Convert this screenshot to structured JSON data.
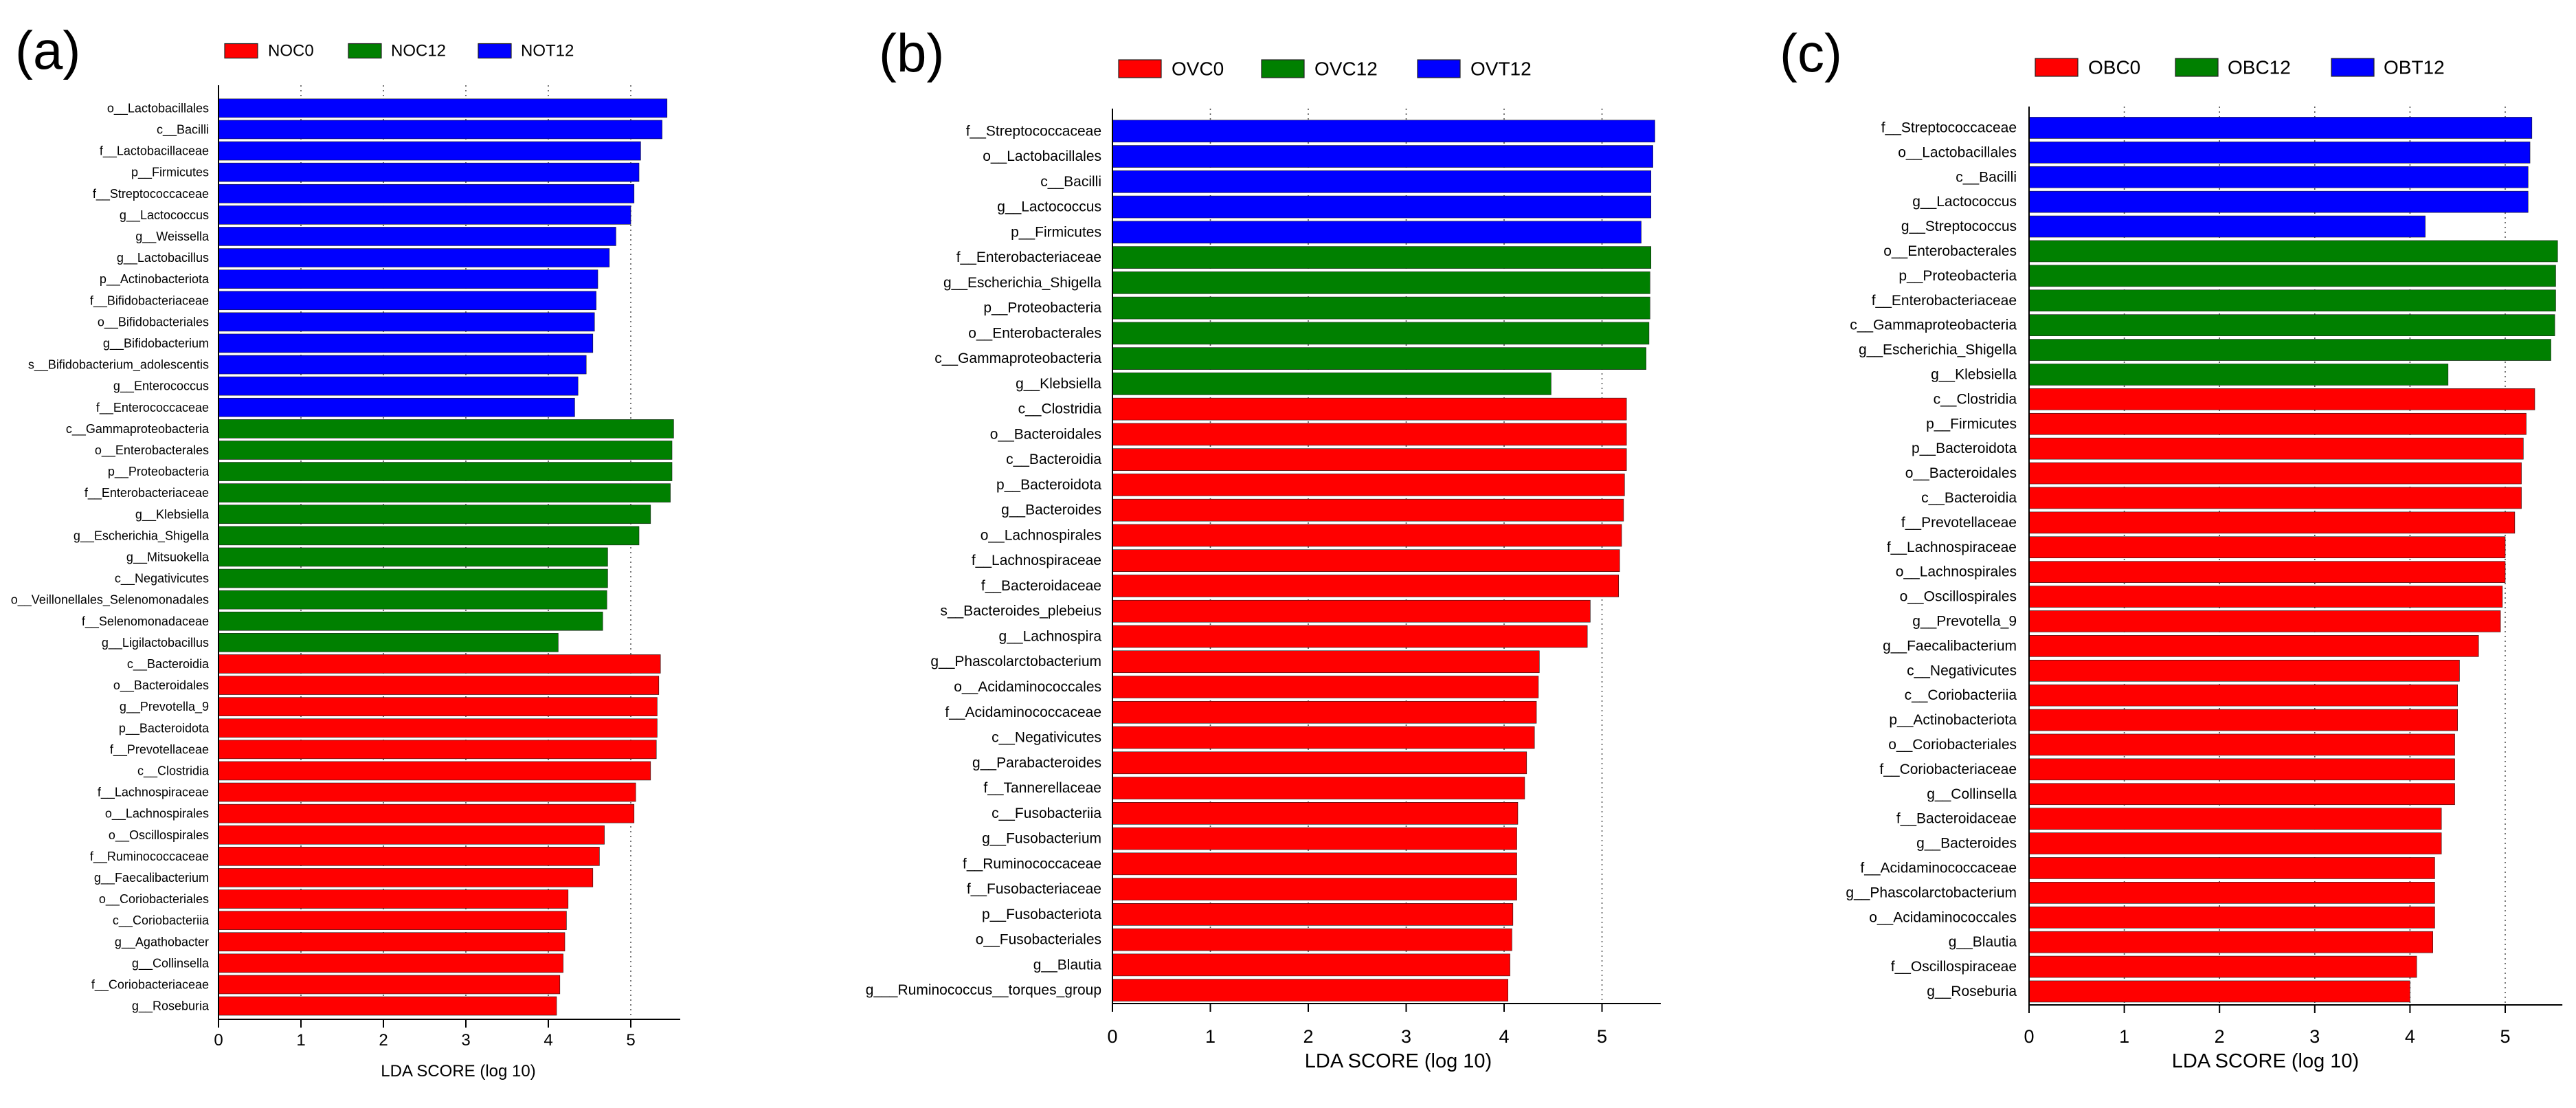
{
  "chart_data": [
    {
      "type": "bar",
      "panel_label": "(a)",
      "title": "",
      "xlabel": "LDA SCORE (log 10)",
      "ylabel": "",
      "xlim": [
        0,
        5.6
      ],
      "xticks": [
        0,
        1,
        2,
        3,
        4,
        5
      ],
      "xtick_labels": [
        "0",
        "1",
        "2",
        "3",
        "4",
        "5"
      ],
      "grid": true,
      "series": [
        {
          "name": "NOC0",
          "color": "#ff0000"
        },
        {
          "name": "NOC12",
          "color": "#008000"
        },
        {
          "name": "NOT12",
          "color": "#0000ff"
        }
      ],
      "bars": [
        {
          "label": "o__Lactobacillales",
          "value": 5.44,
          "series": 2
        },
        {
          "label": "c__Bacilli",
          "value": 5.38,
          "series": 2
        },
        {
          "label": "f__Lactobacillaceae",
          "value": 5.12,
          "series": 2
        },
        {
          "label": "p__Firmicutes",
          "value": 5.1,
          "series": 2
        },
        {
          "label": "f__Streptococcaceae",
          "value": 5.04,
          "series": 2
        },
        {
          "label": "g__Lactococcus",
          "value": 5.0,
          "series": 2
        },
        {
          "label": "g__Weissella",
          "value": 4.82,
          "series": 2
        },
        {
          "label": "g__Lactobacillus",
          "value": 4.74,
          "series": 2
        },
        {
          "label": "p__Actinobacteriota",
          "value": 4.6,
          "series": 2
        },
        {
          "label": "f__Bifidobacteriaceae",
          "value": 4.58,
          "series": 2
        },
        {
          "label": "o__Bifidobacteriales",
          "value": 4.56,
          "series": 2
        },
        {
          "label": "g__Bifidobacterium",
          "value": 4.54,
          "series": 2
        },
        {
          "label": "s__Bifidobacterium_adolescentis",
          "value": 4.46,
          "series": 2
        },
        {
          "label": "g__Enterococcus",
          "value": 4.36,
          "series": 2
        },
        {
          "label": "f__Enterococcaceae",
          "value": 4.32,
          "series": 2
        },
        {
          "label": "c__Gammaproteobacteria",
          "value": 5.52,
          "series": 1
        },
        {
          "label": "o__Enterobacterales",
          "value": 5.5,
          "series": 1
        },
        {
          "label": "p__Proteobacteria",
          "value": 5.5,
          "series": 1
        },
        {
          "label": "f__Enterobacteriaceae",
          "value": 5.48,
          "series": 1
        },
        {
          "label": "g__Klebsiella",
          "value": 5.24,
          "series": 1
        },
        {
          "label": "g__Escherichia_Shigella",
          "value": 5.1,
          "series": 1
        },
        {
          "label": "g__Mitsuokella",
          "value": 4.72,
          "series": 1
        },
        {
          "label": "c__Negativicutes",
          "value": 4.72,
          "series": 1
        },
        {
          "label": "o__Veillonellales_Selenomonadales",
          "value": 4.71,
          "series": 1
        },
        {
          "label": "f__Selenomonadaceae",
          "value": 4.66,
          "series": 1
        },
        {
          "label": "g__Ligilactobacillus",
          "value": 4.12,
          "series": 1
        },
        {
          "label": "c__Bacteroidia",
          "value": 5.36,
          "series": 0
        },
        {
          "label": "o__Bacteroidales",
          "value": 5.34,
          "series": 0
        },
        {
          "label": "g__Prevotella_9",
          "value": 5.32,
          "series": 0
        },
        {
          "label": "p__Bacteroidota",
          "value": 5.32,
          "series": 0
        },
        {
          "label": "f__Prevotellaceae",
          "value": 5.31,
          "series": 0
        },
        {
          "label": "c__Clostridia",
          "value": 5.24,
          "series": 0
        },
        {
          "label": "f__Lachnospiraceae",
          "value": 5.06,
          "series": 0
        },
        {
          "label": "o__Lachnospirales",
          "value": 5.04,
          "series": 0
        },
        {
          "label": "o__Oscillospirales",
          "value": 4.68,
          "series": 0
        },
        {
          "label": "f__Ruminococcaceae",
          "value": 4.62,
          "series": 0
        },
        {
          "label": "g__Faecalibacterium",
          "value": 4.54,
          "series": 0
        },
        {
          "label": "o__Coriobacteriales",
          "value": 4.24,
          "series": 0
        },
        {
          "label": "c__Coriobacteriia",
          "value": 4.22,
          "series": 0
        },
        {
          "label": "g__Agathobacter",
          "value": 4.2,
          "series": 0
        },
        {
          "label": "g__Collinsella",
          "value": 4.18,
          "series": 0
        },
        {
          "label": "f__Coriobacteriaceae",
          "value": 4.14,
          "series": 0
        },
        {
          "label": "g__Roseburia",
          "value": 4.1,
          "series": 0
        }
      ]
    },
    {
      "type": "bar",
      "panel_label": "(b)",
      "title": "",
      "xlabel": "LDA SCORE (log 10)",
      "ylabel": "",
      "xlim": [
        0,
        5.6
      ],
      "xticks": [
        0,
        1,
        2,
        3,
        4,
        5
      ],
      "xtick_labels": [
        "0",
        "1",
        "2",
        "3",
        "4",
        "5"
      ],
      "grid": true,
      "series": [
        {
          "name": "OVC0",
          "color": "#ff0000"
        },
        {
          "name": "OVC12",
          "color": "#008000"
        },
        {
          "name": "OVT12",
          "color": "#0000ff"
        }
      ],
      "bars": [
        {
          "label": "f__Streptococcaceae",
          "value": 5.54,
          "series": 2
        },
        {
          "label": "o__Lactobacillales",
          "value": 5.52,
          "series": 2
        },
        {
          "label": "c__Bacilli",
          "value": 5.5,
          "series": 2
        },
        {
          "label": "g__Lactococcus",
          "value": 5.5,
          "series": 2
        },
        {
          "label": "p__Firmicutes",
          "value": 5.4,
          "series": 2
        },
        {
          "label": "f__Enterobacteriaceae",
          "value": 5.5,
          "series": 1
        },
        {
          "label": "g__Escherichia_Shigella",
          "value": 5.49,
          "series": 1
        },
        {
          "label": "p__Proteobacteria",
          "value": 5.49,
          "series": 1
        },
        {
          "label": "o__Enterobacterales",
          "value": 5.48,
          "series": 1
        },
        {
          "label": "c__Gammaproteobacteria",
          "value": 5.45,
          "series": 1
        },
        {
          "label": "g__Klebsiella",
          "value": 4.48,
          "series": 1
        },
        {
          "label": "c__Clostridia",
          "value": 5.25,
          "series": 0
        },
        {
          "label": "o__Bacteroidales",
          "value": 5.25,
          "series": 0
        },
        {
          "label": "c__Bacteroidia",
          "value": 5.25,
          "series": 0
        },
        {
          "label": "p__Bacteroidota",
          "value": 5.23,
          "series": 0
        },
        {
          "label": "g__Bacteroides",
          "value": 5.22,
          "series": 0
        },
        {
          "label": "o__Lachnospirales",
          "value": 5.2,
          "series": 0
        },
        {
          "label": "f__Lachnospiraceae",
          "value": 5.18,
          "series": 0
        },
        {
          "label": "f__Bacteroidaceae",
          "value": 5.17,
          "series": 0
        },
        {
          "label": "s__Bacteroides_plebeius",
          "value": 4.88,
          "series": 0
        },
        {
          "label": "g__Lachnospira",
          "value": 4.85,
          "series": 0
        },
        {
          "label": "g__Phascolarctobacterium",
          "value": 4.36,
          "series": 0
        },
        {
          "label": "o__Acidaminococcales",
          "value": 4.35,
          "series": 0
        },
        {
          "label": "f__Acidaminococcaceae",
          "value": 4.33,
          "series": 0
        },
        {
          "label": "c__Negativicutes",
          "value": 4.31,
          "series": 0
        },
        {
          "label": "g__Parabacteroides",
          "value": 4.23,
          "series": 0
        },
        {
          "label": "f__Tannerellaceae",
          "value": 4.21,
          "series": 0
        },
        {
          "label": "c__Fusobacteriia",
          "value": 4.14,
          "series": 0
        },
        {
          "label": "g__Fusobacterium",
          "value": 4.13,
          "series": 0
        },
        {
          "label": "f__Ruminococcaceae",
          "value": 4.13,
          "series": 0
        },
        {
          "label": "f__Fusobacteriaceae",
          "value": 4.13,
          "series": 0
        },
        {
          "label": "p__Fusobacteriota",
          "value": 4.09,
          "series": 0
        },
        {
          "label": "o__Fusobacteriales",
          "value": 4.08,
          "series": 0
        },
        {
          "label": "g__Blautia",
          "value": 4.06,
          "series": 0
        },
        {
          "label": "g___Ruminococcus__torques_group",
          "value": 4.04,
          "series": 0
        }
      ]
    },
    {
      "type": "bar",
      "panel_label": "(c)",
      "title": "",
      "xlabel": "LDA SCORE (log 10)",
      "ylabel": "",
      "xlim": [
        0,
        5.6
      ],
      "xticks": [
        0,
        1,
        2,
        3,
        4,
        5
      ],
      "xtick_labels": [
        "0",
        "1",
        "2",
        "3",
        "4",
        "5"
      ],
      "grid": true,
      "series": [
        {
          "name": "OBC0",
          "color": "#ff0000"
        },
        {
          "name": "OBC12",
          "color": "#008000"
        },
        {
          "name": "OBT12",
          "color": "#0000ff"
        }
      ],
      "bars": [
        {
          "label": "f__Streptococcaceae",
          "value": 5.28,
          "series": 2
        },
        {
          "label": "o__Lactobacillales",
          "value": 5.26,
          "series": 2
        },
        {
          "label": "c__Bacilli",
          "value": 5.24,
          "series": 2
        },
        {
          "label": "g__Lactococcus",
          "value": 5.24,
          "series": 2
        },
        {
          "label": "g__Streptococcus",
          "value": 4.16,
          "series": 2
        },
        {
          "label": "o__Enterobacterales",
          "value": 5.55,
          "series": 1
        },
        {
          "label": "p__Proteobacteria",
          "value": 5.53,
          "series": 1
        },
        {
          "label": "f__Enterobacteriaceae",
          "value": 5.53,
          "series": 1
        },
        {
          "label": "c__Gammaproteobacteria",
          "value": 5.52,
          "series": 1
        },
        {
          "label": "g__Escherichia_Shigella",
          "value": 5.48,
          "series": 1
        },
        {
          "label": "g__Klebsiella",
          "value": 4.4,
          "series": 1
        },
        {
          "label": "c__Clostridia",
          "value": 5.31,
          "series": 0
        },
        {
          "label": "p__Firmicutes",
          "value": 5.22,
          "series": 0
        },
        {
          "label": "p__Bacteroidota",
          "value": 5.19,
          "series": 0
        },
        {
          "label": "o__Bacteroidales",
          "value": 5.17,
          "series": 0
        },
        {
          "label": "c__Bacteroidia",
          "value": 5.17,
          "series": 0
        },
        {
          "label": "f__Prevotellaceae",
          "value": 5.1,
          "series": 0
        },
        {
          "label": "f__Lachnospiraceae",
          "value": 5.0,
          "series": 0
        },
        {
          "label": "o__Lachnospirales",
          "value": 5.0,
          "series": 0
        },
        {
          "label": "o__Oscillospirales",
          "value": 4.97,
          "series": 0
        },
        {
          "label": "g__Prevotella_9",
          "value": 4.95,
          "series": 0
        },
        {
          "label": "g__Faecalibacterium",
          "value": 4.72,
          "series": 0
        },
        {
          "label": "c__Negativicutes",
          "value": 4.52,
          "series": 0
        },
        {
          "label": "c__Coriobacteriia",
          "value": 4.5,
          "series": 0
        },
        {
          "label": "p__Actinobacteriota",
          "value": 4.5,
          "series": 0
        },
        {
          "label": "o__Coriobacteriales",
          "value": 4.47,
          "series": 0
        },
        {
          "label": "f__Coriobacteriaceae",
          "value": 4.47,
          "series": 0
        },
        {
          "label": "g__Collinsella",
          "value": 4.47,
          "series": 0
        },
        {
          "label": "f__Bacteroidaceae",
          "value": 4.33,
          "series": 0
        },
        {
          "label": "g__Bacteroides",
          "value": 4.33,
          "series": 0
        },
        {
          "label": "f__Acidaminococcaceae",
          "value": 4.26,
          "series": 0
        },
        {
          "label": "g__Phascolarctobacterium",
          "value": 4.26,
          "series": 0
        },
        {
          "label": "o__Acidaminococcales",
          "value": 4.26,
          "series": 0
        },
        {
          "label": "g__Blautia",
          "value": 4.24,
          "series": 0
        },
        {
          "label": "f__Oscillospiraceae",
          "value": 4.07,
          "series": 0
        },
        {
          "label": "g__Roseburia",
          "value": 4.0,
          "series": 0
        }
      ]
    }
  ]
}
